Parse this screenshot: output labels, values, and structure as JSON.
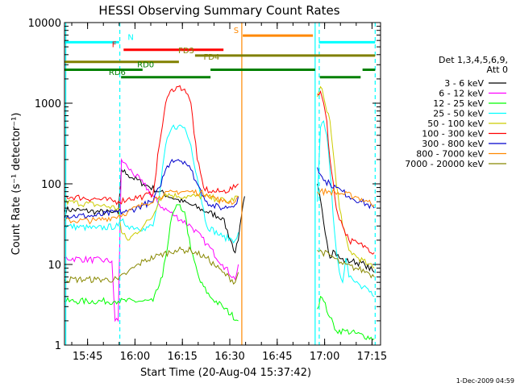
{
  "chart_data": {
    "type": "line",
    "title": "HESSI Observing Summary Count Rates",
    "xlabel": "Start Time (20-Aug-04 15:37:42)",
    "ylabel": "Count Rate (s⁻¹ detector⁻¹)",
    "x_unit": "minutes after 15:37:42",
    "xlim": [
      0,
      100
    ],
    "ylim": [
      1,
      10000
    ],
    "y_scale": "log",
    "grid": false,
    "x_ticks": [
      {
        "label": "15:45",
        "value": 7.3
      },
      {
        "label": "16:00",
        "value": 22.3
      },
      {
        "label": "16:15",
        "value": 37.3
      },
      {
        "label": "16:30",
        "value": 52.3
      },
      {
        "label": "16:45",
        "value": 67.3
      },
      {
        "label": "17:00",
        "value": 82.3
      },
      {
        "label": "17:15",
        "value": 97.3
      }
    ],
    "y_ticks": [
      {
        "label": "1",
        "value": 1
      },
      {
        "label": "10",
        "value": 10
      },
      {
        "label": "100",
        "value": 100
      },
      {
        "label": "1000",
        "value": 1000
      },
      {
        "label": "10000",
        "value": 10000
      }
    ],
    "legend": {
      "header": [
        "Det 1,3,4,5,6,9,",
        "Att 0"
      ],
      "placement": "right"
    },
    "series": [
      {
        "name": "3 - 6 keV",
        "color": "#000000",
        "x": [
          0,
          5,
          10,
          15,
          17,
          18,
          20,
          25,
          30,
          35,
          40,
          45,
          50,
          54,
          55,
          56,
          57,
          79,
          80,
          84,
          85,
          87,
          89,
          91,
          95,
          98
        ],
        "y": [
          48,
          47,
          45,
          44,
          43,
          150,
          130,
          100,
          80,
          65,
          55,
          45,
          38,
          14,
          20,
          40,
          70,
          0,
          100,
          12,
          15,
          12,
          11,
          11,
          10,
          8
        ]
      },
      {
        "name": "6 - 12 keV",
        "color": "#ff00ff",
        "x": [
          0,
          15,
          16,
          17,
          18,
          20,
          25,
          30,
          35,
          40,
          45,
          50,
          54,
          55
        ],
        "y": [
          12,
          11,
          2,
          2,
          200,
          160,
          100,
          55,
          40,
          30,
          18,
          10,
          6.5,
          10
        ]
      },
      {
        "name": "12 - 25 keV",
        "color": "#00ff00",
        "x": [
          0,
          16,
          17,
          24,
          28,
          31,
          34,
          36,
          38,
          40,
          43,
          46,
          50,
          55,
          79,
          80,
          81,
          82,
          84,
          86,
          89,
          98
        ],
        "y": [
          3.5,
          3.5,
          3.5,
          3.5,
          3.5,
          7,
          40,
          55,
          45,
          15,
          6,
          4,
          3,
          2,
          0,
          2.8,
          4,
          3.5,
          2.2,
          1.5,
          1.5,
          1.2
        ]
      },
      {
        "name": "25 - 50 keV",
        "color": "#00ffff",
        "x": [
          0,
          10,
          17,
          18,
          20,
          25,
          28,
          30,
          32,
          34,
          36,
          38,
          40,
          42,
          45,
          50,
          54,
          55,
          79,
          80,
          81,
          82,
          83,
          84,
          85,
          86,
          87,
          88,
          89,
          90,
          92,
          94,
          96,
          98
        ],
        "y": [
          30,
          28,
          30,
          35,
          30,
          28,
          30,
          70,
          300,
          500,
          520,
          500,
          300,
          120,
          30,
          22,
          20,
          25,
          0,
          60,
          500,
          600,
          400,
          150,
          40,
          15,
          8,
          6,
          12,
          7,
          6,
          5,
          5,
          4
        ]
      },
      {
        "name": "50 - 100 keV",
        "color": "#cccc00",
        "x": [
          0,
          10,
          17,
          18,
          20,
          25,
          28,
          30,
          32,
          36,
          40,
          44,
          48,
          52,
          55,
          79,
          80,
          81,
          82,
          84,
          86,
          88,
          90,
          93,
          96,
          98
        ],
        "y": [
          60,
          55,
          50,
          25,
          20,
          30,
          40,
          65,
          75,
          70,
          70,
          70,
          65,
          60,
          70,
          0,
          1200,
          1600,
          1200,
          600,
          100,
          30,
          15,
          12,
          10,
          9
        ]
      },
      {
        "name": "100 - 300 keV",
        "color": "#ff0000",
        "x": [
          0,
          10,
          17,
          20,
          25,
          28,
          30,
          32,
          34,
          36,
          38,
          40,
          42,
          44,
          46,
          50,
          54,
          55,
          79,
          80,
          81,
          82,
          83,
          84,
          86,
          88,
          90,
          93,
          96,
          98
        ],
        "y": [
          70,
          65,
          60,
          65,
          70,
          75,
          300,
          1000,
          1500,
          1600,
          1500,
          1000,
          200,
          90,
          80,
          80,
          90,
          100,
          0,
          1300,
          1400,
          1000,
          600,
          200,
          50,
          30,
          20,
          18,
          16,
          14
        ]
      },
      {
        "name": "300 - 800 keV",
        "color": "#0000cc",
        "x": [
          0,
          10,
          17,
          20,
          25,
          28,
          30,
          32,
          34,
          36,
          38,
          40,
          42,
          44,
          46,
          50,
          54,
          55,
          79,
          80,
          81,
          82,
          84,
          86,
          88,
          90,
          94,
          98
        ],
        "y": [
          40,
          40,
          45,
          45,
          55,
          60,
          90,
          150,
          200,
          200,
          190,
          150,
          100,
          70,
          55,
          50,
          55,
          70,
          0,
          160,
          130,
          110,
          100,
          90,
          80,
          70,
          60,
          50
        ]
      },
      {
        "name": "800 - 7000 keV",
        "color": "#ff8800",
        "x": [
          0,
          10,
          17,
          20,
          25,
          30,
          35,
          40,
          45,
          50,
          54,
          55,
          79,
          80,
          84,
          88,
          92,
          96,
          98
        ],
        "y": [
          35,
          35,
          40,
          45,
          55,
          70,
          80,
          80,
          75,
          60,
          60,
          70,
          0,
          80,
          80,
          75,
          70,
          60,
          55
        ]
      },
      {
        "name": "7000 - 20000 keV",
        "color": "#888800",
        "x": [
          0,
          10,
          17,
          20,
          25,
          30,
          35,
          40,
          45,
          50,
          54,
          55,
          79,
          80,
          84,
          88,
          92,
          96,
          98
        ],
        "y": [
          6.5,
          6.5,
          6.5,
          8,
          11,
          13,
          15,
          15,
          12,
          8,
          6,
          8,
          0,
          15,
          13,
          10,
          9,
          8,
          7
        ]
      }
    ],
    "flags": [
      {
        "label": "N",
        "color": "#00ffff",
        "segments": [
          [
            0,
            17.3
          ],
          [
            80.5,
            98.3
          ]
        ],
        "level": 5700,
        "label_at": 20
      },
      {
        "label": "F",
        "color": "#ff0000",
        "segments": [
          [
            18.7,
            50.3
          ]
        ],
        "level": 4600,
        "label_at": 15
      },
      {
        "label": "S",
        "color": "#ff8800",
        "segments": [
          [
            56.4,
            78.6
          ]
        ],
        "level": 6900,
        "label_at": 53.5
      },
      {
        "label": "FD3",
        "color": "#808000",
        "segments": [
          [
            41.3,
            98.3
          ]
        ],
        "level": 3900,
        "label_at": 36
      },
      {
        "label": "FD4",
        "color": "#808000",
        "segments": [
          [
            0,
            36.2
          ]
        ],
        "level": 3250,
        "label_at": 44
      },
      {
        "label": "RD0",
        "color": "#008000",
        "segments": [
          [
            0,
            24.7
          ],
          [
            46.2,
            79.3
          ],
          [
            94.3,
            98.3
          ]
        ],
        "level": 2600,
        "label_at": 23
      },
      {
        "label": "RD6",
        "color": "#008000",
        "segments": [
          [
            17.9,
            46.2
          ],
          [
            80.8,
            93.7
          ]
        ],
        "level": 2100,
        "label_at": 14
      }
    ],
    "vertical_markers": [
      {
        "color": "#00ffff",
        "style": "dashed",
        "x": 17.5
      },
      {
        "color": "#00ffff",
        "style": "solid",
        "x": 79.3
      },
      {
        "color": "#00ffff",
        "style": "dashed",
        "x": 80.6
      },
      {
        "color": "#00ffff",
        "style": "dashed",
        "x": 98.3
      },
      {
        "color": "#00ffff",
        "style": "solid",
        "x": 0.4
      },
      {
        "color": "#ff8800",
        "style": "solid",
        "x": 56.1
      }
    ]
  },
  "stamp": "1-Dec-2009 04:59"
}
